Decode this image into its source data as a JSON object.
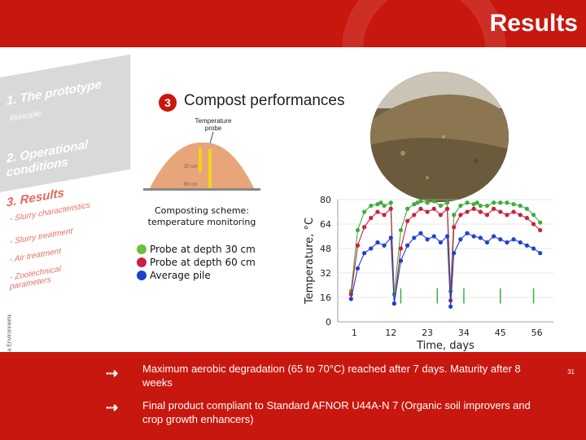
{
  "header": {
    "title": "Results"
  },
  "sidebar": {
    "side_text": "ciel - Veolia Environnement",
    "items": [
      {
        "title": "1. The prototype",
        "sub": [
          "Principle"
        ]
      },
      {
        "title": "2. Operational conditions",
        "sub": []
      },
      {
        "title": "3. Results",
        "sub": [
          "- Slurry characteristics",
          "- Slurry treatment",
          "- Air treatment",
          "- Zootechnical parameters"
        ]
      }
    ]
  },
  "section": {
    "number": "3",
    "title": "Compost performances"
  },
  "scheme": {
    "probe_label": "Temperature probe",
    "depth_30": "30 cm",
    "depth_60": "60 cm",
    "caption_line1": "Composting scheme:",
    "caption_line2": "temperature monitoring"
  },
  "legend": [
    {
      "label": "Probe at depth 30 cm",
      "color": "#6bbf3a"
    },
    {
      "label": "Probe at depth 60 cm",
      "color": "#cc2040"
    },
    {
      "label": "Average pile",
      "color": "#2040d0"
    }
  ],
  "chart_data": {
    "type": "line",
    "title": "",
    "xlabel": "Time, days",
    "ylabel": "Temperature, °C",
    "x_ticks": [
      1,
      12,
      23,
      34,
      45,
      56
    ],
    "y_ticks": [
      0,
      16,
      32,
      48,
      64,
      80
    ],
    "xlim": [
      -4,
      61
    ],
    "ylim": [
      0,
      80
    ],
    "series": [
      {
        "name": "Probe at depth 30 cm",
        "color": "#3fae3a",
        "x": [
          0,
          2,
          4,
          6,
          8,
          9,
          10,
          12,
          13,
          15,
          17,
          19,
          20,
          21,
          23,
          25,
          27,
          29,
          30,
          31,
          33,
          35,
          37,
          38,
          39,
          41,
          43,
          45,
          47,
          49,
          51,
          53,
          55,
          57
        ],
        "y": [
          20,
          60,
          72,
          76,
          77,
          78,
          76,
          78,
          18,
          60,
          74,
          77,
          78,
          79,
          78,
          79,
          76,
          78,
          20,
          70,
          76,
          78,
          77,
          78,
          76,
          76,
          78,
          78,
          78,
          77,
          76,
          74,
          70,
          65
        ]
      },
      {
        "name": "Probe at depth 60 cm",
        "color": "#cc2040",
        "x": [
          0,
          2,
          4,
          6,
          8,
          10,
          12,
          13,
          15,
          17,
          19,
          21,
          23,
          25,
          27,
          29,
          30,
          31,
          33,
          35,
          37,
          39,
          41,
          43,
          45,
          47,
          49,
          51,
          53,
          55,
          57
        ],
        "y": [
          18,
          50,
          62,
          68,
          72,
          70,
          74,
          12,
          48,
          66,
          70,
          74,
          72,
          74,
          70,
          74,
          14,
          62,
          70,
          72,
          74,
          72,
          70,
          74,
          72,
          70,
          72,
          70,
          68,
          64,
          60
        ]
      },
      {
        "name": "Average pile",
        "color": "#2040d0",
        "x": [
          0,
          2,
          4,
          6,
          8,
          10,
          12,
          13,
          15,
          17,
          19,
          21,
          23,
          25,
          27,
          29,
          30,
          31,
          33,
          35,
          37,
          39,
          41,
          43,
          45,
          47,
          49,
          51,
          53,
          55,
          57
        ],
        "y": [
          15,
          35,
          45,
          48,
          52,
          50,
          55,
          12,
          40,
          50,
          55,
          58,
          54,
          56,
          52,
          56,
          10,
          45,
          54,
          58,
          56,
          55,
          52,
          56,
          54,
          52,
          54,
          52,
          50,
          48,
          45
        ]
      }
    ],
    "markers_x": [
      15,
      26,
      34,
      45,
      55
    ]
  },
  "notes": [
    {
      "text": "Maximum aerobic degradation (65 to 70°C) reached after 7 days. Maturity after 8 weeks"
    },
    {
      "text": "Final product compliant to Standard AFNOR U44A-N 7 (Organic soil improvers and crop growth enhancers)"
    }
  ],
  "page_number": "31"
}
